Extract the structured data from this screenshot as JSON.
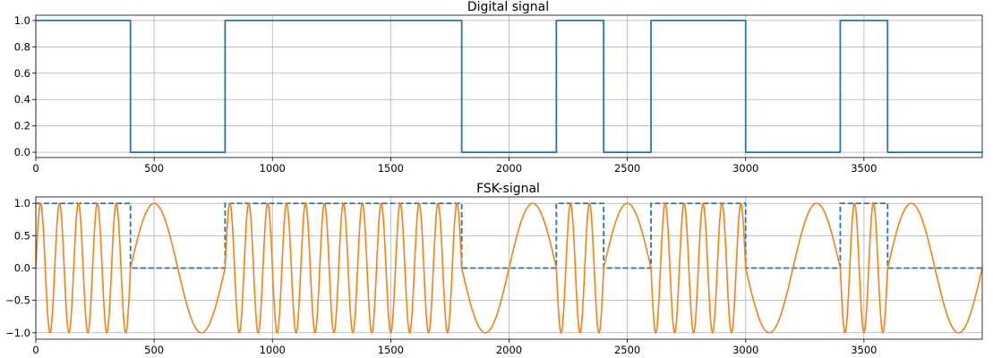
{
  "chart_data": [
    {
      "type": "line",
      "title": "Digital signal",
      "xlabel": "",
      "ylabel": "",
      "xlim": [
        0,
        4000
      ],
      "ylim": [
        -0.04,
        1.04
      ],
      "xticks": [
        0,
        500,
        1000,
        1500,
        2000,
        2500,
        3000,
        3500
      ],
      "yticks": [
        0.0,
        0.2,
        0.4,
        0.6,
        0.8,
        1.0
      ],
      "ytick_labels": [
        "0.0",
        "0.2",
        "0.4",
        "0.6",
        "0.8",
        "1.0"
      ],
      "grid": true,
      "series": [
        {
          "color": "#1f77b4",
          "style": "steps",
          "bit_duration": 200,
          "bits": [
            1,
            1,
            0,
            0,
            1,
            1,
            1,
            1,
            1,
            0,
            0,
            1,
            0,
            1,
            1,
            0,
            0,
            1,
            0,
            0
          ]
        }
      ]
    },
    {
      "type": "line",
      "title": "FSK-signal",
      "xlabel": "",
      "ylabel": "",
      "xlim": [
        0,
        4000
      ],
      "ylim": [
        -1.1,
        1.1
      ],
      "xticks": [
        0,
        500,
        1000,
        1500,
        2000,
        2500,
        3000,
        3500
      ],
      "yticks": [
        -1.0,
        -0.5,
        0.0,
        0.5,
        1.0
      ],
      "ytick_labels": [
        "−1.0",
        "−0.5",
        "0.0",
        "0.5",
        "1.0"
      ],
      "grid": true,
      "series": [
        {
          "color": "#1f77b4",
          "style": "dashed-steps",
          "bit_duration": 200,
          "bits": [
            1,
            1,
            0,
            0,
            1,
            1,
            1,
            1,
            1,
            0,
            0,
            1,
            0,
            1,
            1,
            0,
            0,
            1,
            0,
            0
          ]
        },
        {
          "color": "#ff7f0e",
          "style": "fsk",
          "bit_duration": 200,
          "bits": [
            1,
            1,
            0,
            0,
            1,
            1,
            1,
            1,
            1,
            0,
            0,
            1,
            0,
            1,
            1,
            0,
            0,
            1,
            0,
            0
          ],
          "freq_bit_1": 0.0125,
          "freq_bit_0": 0.0025
        }
      ]
    }
  ]
}
